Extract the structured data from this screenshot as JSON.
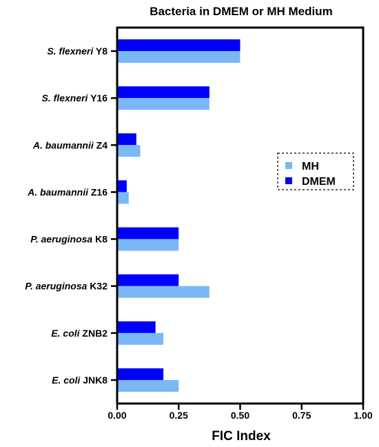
{
  "chart_data": {
    "type": "bar",
    "orientation": "horizontal",
    "title": "Bacteria in DMEM or MH Medium",
    "xlabel": "FIC Index",
    "ylabel": "",
    "xlim": [
      0,
      1
    ],
    "xticks": [
      "0.00",
      "0.25",
      "0.50",
      "0.75",
      "1.00"
    ],
    "categories": [
      {
        "species": "S. flexneri",
        "strain": "Y8"
      },
      {
        "species": "S. flexneri",
        "strain": "Y16"
      },
      {
        "species": "A. baumannii",
        "strain": "Z4"
      },
      {
        "species": "A. baumannii",
        "strain": "Z16"
      },
      {
        "species": "P. aeruginosa",
        "strain": "K8"
      },
      {
        "species": "P. aeruginosa",
        "strain": "K32"
      },
      {
        "species": "E. coli",
        "strain": "ZNB2"
      },
      {
        "species": "E. coli",
        "strain": "JNK8"
      }
    ],
    "series": [
      {
        "name": "DMEM",
        "color": "#0000ff",
        "values": [
          0.5,
          0.375,
          0.078,
          0.039,
          0.25,
          0.25,
          0.156,
          0.188
        ]
      },
      {
        "name": "MH",
        "color": "#7ab8f5",
        "values": [
          0.5,
          0.375,
          0.094,
          0.047,
          0.25,
          0.375,
          0.188,
          0.25
        ]
      }
    ],
    "legend": {
      "position": "right",
      "order": [
        "MH",
        "DMEM"
      ],
      "border": "dashed"
    },
    "grid": false
  }
}
